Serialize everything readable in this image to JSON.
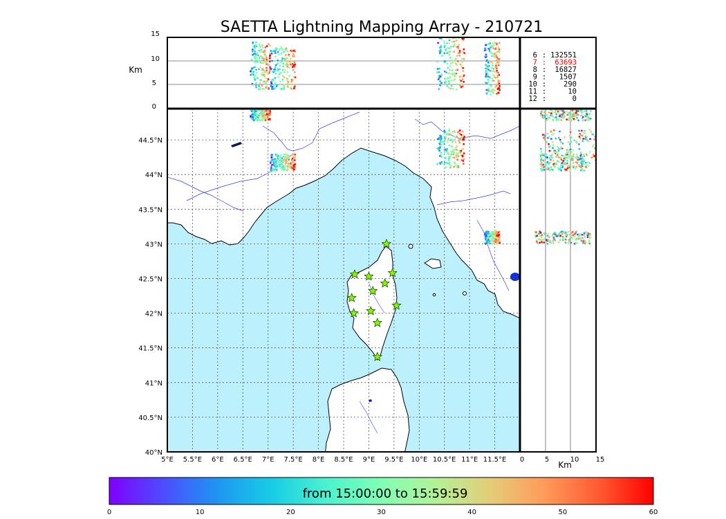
{
  "title": "SAETTA Lightning Mapping Array - 210721",
  "colors": {
    "sea": "#bdf0fd",
    "land": "#ffffff",
    "coast": "#000000",
    "rivers": "#3b3bff",
    "station_fill": "#7cfc00",
    "station_edge": "#2b4b00",
    "highlight": "#ff0000",
    "colormap": "rainbow"
  },
  "map": {
    "lon_ticks": [
      "5°E",
      "5.5°E",
      "6°E",
      "6.5°E",
      "7°E",
      "7.5°E",
      "8°E",
      "8.5°E",
      "9°E",
      "9.5°E",
      "10°E",
      "10.5°E",
      "11°E",
      "11.5°E"
    ],
    "lat_ticks": [
      "40°N",
      "40.5°N",
      "41°N",
      "41.5°N",
      "42°N",
      "42.5°N",
      "43°N",
      "43.5°N",
      "44°N",
      "44.5°N"
    ],
    "lon_range": [
      5,
      12
    ],
    "lat_range": [
      40,
      44.95
    ],
    "grid": true,
    "stations": [
      {
        "lon": 9.35,
        "lat": 43.0
      },
      {
        "lon": 8.72,
        "lat": 42.56
      },
      {
        "lon": 9.0,
        "lat": 42.53
      },
      {
        "lon": 9.47,
        "lat": 42.58
      },
      {
        "lon": 9.32,
        "lat": 42.43
      },
      {
        "lon": 9.08,
        "lat": 42.32
      },
      {
        "lon": 8.66,
        "lat": 42.22
      },
      {
        "lon": 9.55,
        "lat": 42.11
      },
      {
        "lon": 8.7,
        "lat": 42.0
      },
      {
        "lon": 9.04,
        "lat": 42.03
      },
      {
        "lon": 9.17,
        "lat": 41.86
      },
      {
        "lon": 9.17,
        "lat": 41.37
      }
    ]
  },
  "top_panel": {
    "ylabel": "Km",
    "y_ticks": [
      "0",
      "5",
      "10",
      "15"
    ],
    "y_range": [
      0,
      15
    ]
  },
  "right_panel": {
    "xlabel": "Km",
    "x_ticks": [
      "0",
      "5",
      "10",
      "15"
    ],
    "x_range": [
      0,
      15
    ]
  },
  "station_counts": [
    {
      "stations": "6",
      "sep": ":",
      "count": "132551",
      "highlight": false
    },
    {
      "stations": "7",
      "sep": ":",
      "count": "63693",
      "highlight": true
    },
    {
      "stations": "8",
      "sep": ":",
      "count": "16827",
      "highlight": false
    },
    {
      "stations": "9",
      "sep": ":",
      "count": "1507",
      "highlight": false
    },
    {
      "stations": "10",
      "sep": ":",
      "count": "290",
      "highlight": false
    },
    {
      "stations": "11",
      "sep": ":",
      "count": "10",
      "highlight": false
    },
    {
      "stations": "12",
      "sep": ":",
      "count": "0",
      "highlight": false
    }
  ],
  "colorbar": {
    "label": "from 15:00:00 to 15:59:59",
    "ticks": [
      "0",
      "10",
      "20",
      "30",
      "40",
      "50",
      "60"
    ],
    "range": [
      0,
      60
    ]
  },
  "lightning_clusters": [
    {
      "name": "cluster-nw",
      "lon_min": 6.65,
      "lon_max": 7.05,
      "lat_min": 44.78,
      "lat_max": 44.95,
      "alt_min": 4,
      "alt_max": 14
    },
    {
      "name": "cluster-provence",
      "lon_min": 7.05,
      "lon_max": 7.55,
      "lat_min": 44.05,
      "lat_max": 44.3,
      "alt_min": 4,
      "alt_max": 13
    },
    {
      "name": "cluster-ligurian",
      "lon_min": 10.35,
      "lon_max": 10.9,
      "lat_min": 44.1,
      "lat_max": 44.65,
      "alt_min": 4,
      "alt_max": 15
    },
    {
      "name": "cluster-tuscany",
      "lon_min": 11.3,
      "lon_max": 11.6,
      "lat_min": 43.0,
      "lat_max": 43.18,
      "alt_min": 3,
      "alt_max": 14
    }
  ]
}
